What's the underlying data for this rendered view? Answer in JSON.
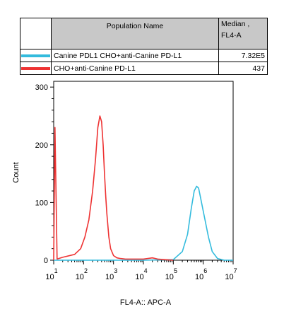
{
  "legend": {
    "header_name": "Population Name",
    "header_median_line1": "Median ,",
    "header_median_line2": "FL4-A",
    "rows": [
      {
        "name": "Canine PDL1 CHO+anti-Canine PD-L1",
        "median": "7.32E5",
        "color": "#33bbdd"
      },
      {
        "name": "CHO+anti-Canine PD-L1",
        "median": "437",
        "color": "#ee3333"
      }
    ]
  },
  "chart_data": {
    "type": "line",
    "title": "",
    "xlabel": "FL4-A:: APC-A",
    "ylabel": "Count",
    "x_scale": "log",
    "xlim": [
      10,
      10000000
    ],
    "ylim": [
      0,
      310
    ],
    "y_ticks": [
      0,
      100,
      200,
      300
    ],
    "x_tick_labels": [
      {
        "base": "10",
        "exp": "1"
      },
      {
        "base": "10",
        "exp": "2"
      },
      {
        "base": "10",
        "exp": "3"
      },
      {
        "base": "10",
        "exp": "4"
      },
      {
        "base": "10",
        "exp": "5"
      },
      {
        "base": "10",
        "exp": "6"
      },
      {
        "base": "10",
        "exp": "7"
      }
    ],
    "series": [
      {
        "name": "Canine PDL1 CHO+anti-Canine PD-L1",
        "color": "#33bbdd",
        "x": [
          10,
          100,
          1000,
          10000,
          100000,
          200000,
          300000,
          400000,
          500000,
          600000,
          700000,
          800000,
          1000000,
          1500000,
          2000000,
          3000000,
          5000000,
          10000000
        ],
        "y": [
          0,
          0,
          0,
          0,
          1,
          15,
          45,
          90,
          120,
          128,
          125,
          110,
          85,
          40,
          15,
          3,
          0,
          0
        ]
      },
      {
        "name": "CHO+anti-Canine PD-L1",
        "color": "#ee3333",
        "x": [
          10,
          11,
          13,
          20,
          50,
          80,
          110,
          150,
          200,
          250,
          300,
          350,
          400,
          450,
          500,
          550,
          600,
          700,
          800,
          1000,
          1300,
          1700,
          2500,
          5000,
          10000,
          20000,
          30000,
          50000,
          100000
        ],
        "y": [
          0,
          230,
          2,
          5,
          10,
          20,
          40,
          70,
          120,
          175,
          230,
          250,
          240,
          200,
          150,
          110,
          80,
          40,
          20,
          8,
          4,
          3,
          2,
          2,
          2,
          4,
          2,
          1,
          0
        ]
      }
    ]
  }
}
